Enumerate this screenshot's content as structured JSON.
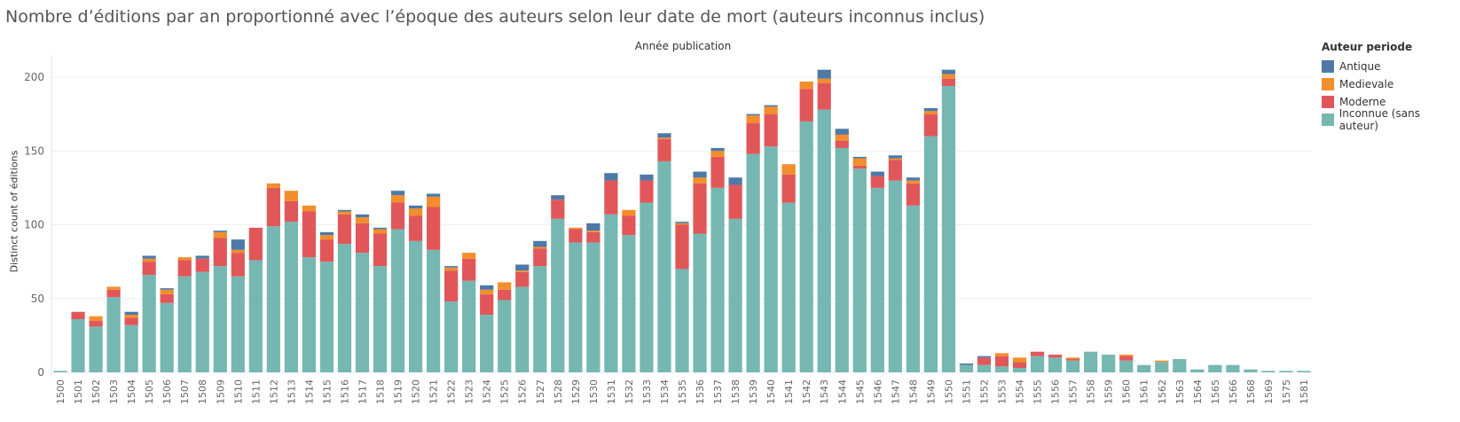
{
  "title": "Nombre d’éditions par an proportionné avec l’époque des auteurs selon leur date de mort (auteurs inconnus inclus)",
  "legend": {
    "title": "Auteur periode",
    "items": [
      {
        "label": "Antique",
        "color": "#4e79a7"
      },
      {
        "label": "Medievale",
        "color": "#f28e2b"
      },
      {
        "label": "Moderne",
        "color": "#e15759"
      },
      {
        "label": "Inconnue (sans auteur)",
        "color": "#76b7b2"
      }
    ]
  },
  "chart_data": {
    "type": "bar",
    "stacked": true,
    "xlabel": "Année publication",
    "ylabel": "Distinct count of éditions",
    "ylim": [
      0,
      215
    ],
    "yticks": [
      0,
      50,
      100,
      150,
      200
    ],
    "grid": true,
    "legend_position": "right",
    "categories": [
      "1500",
      "1501",
      "1502",
      "1503",
      "1504",
      "1505",
      "1506",
      "1507",
      "1508",
      "1509",
      "1510",
      "1511",
      "1512",
      "1513",
      "1514",
      "1515",
      "1516",
      "1517",
      "1518",
      "1519",
      "1520",
      "1521",
      "1522",
      "1523",
      "1524",
      "1525",
      "1526",
      "1527",
      "1528",
      "1529",
      "1530",
      "1531",
      "1532",
      "1533",
      "1534",
      "1535",
      "1536",
      "1537",
      "1538",
      "1539",
      "1540",
      "1541",
      "1542",
      "1543",
      "1544",
      "1545",
      "1546",
      "1547",
      "1548",
      "1549",
      "1550",
      "1551",
      "1552",
      "1553",
      "1554",
      "1555",
      "1556",
      "1557",
      "1558",
      "1559",
      "1560",
      "1561",
      "1562",
      "1563",
      "1564",
      "1565",
      "1566",
      "1568",
      "1569",
      "1575",
      "1581"
    ],
    "series": [
      {
        "name": "Inconnue (sans auteur)",
        "color": "#76b7b2",
        "values": [
          1,
          36,
          31,
          51,
          32,
          66,
          47,
          65,
          68,
          72,
          65,
          76,
          99,
          102,
          78,
          75,
          87,
          81,
          72,
          97,
          89,
          83,
          48,
          62,
          39,
          49,
          58,
          72,
          104,
          88,
          88,
          107,
          93,
          115,
          143,
          70,
          94,
          125,
          104,
          148,
          153,
          115,
          170,
          178,
          152,
          138,
          125,
          130,
          113,
          160,
          194,
          5,
          5,
          4,
          3,
          11,
          10,
          8,
          14,
          12,
          8,
          5,
          7,
          9,
          2,
          5,
          5,
          2,
          1,
          1,
          1
        ]
      },
      {
        "name": "Moderne",
        "color": "#e15759",
        "values": [
          0,
          5,
          4,
          5,
          5,
          9,
          6,
          11,
          9,
          19,
          16,
          22,
          26,
          14,
          31,
          15,
          20,
          20,
          22,
          18,
          17,
          29,
          21,
          15,
          14,
          7,
          10,
          12,
          13,
          9,
          7,
          23,
          13,
          15,
          15,
          30,
          34,
          21,
          23,
          21,
          22,
          19,
          22,
          18,
          5,
          2,
          8,
          14,
          15,
          15,
          5,
          0,
          5,
          7,
          4,
          3,
          2,
          1,
          0,
          0,
          3,
          0,
          0,
          0,
          0,
          0,
          0,
          0,
          0,
          0,
          0
        ]
      },
      {
        "name": "Medievale",
        "color": "#f28e2b",
        "values": [
          0,
          0,
          3,
          2,
          2,
          2,
          3,
          2,
          0,
          4,
          2,
          0,
          3,
          7,
          4,
          3,
          2,
          4,
          3,
          5,
          5,
          7,
          2,
          4,
          3,
          5,
          1,
          1,
          0,
          1,
          1,
          0,
          4,
          0,
          1,
          1,
          4,
          4,
          0,
          5,
          5,
          7,
          5,
          3,
          4,
          5,
          0,
          1,
          2,
          2,
          3,
          0,
          0,
          2,
          3,
          0,
          0,
          1,
          0,
          0,
          1,
          0,
          1,
          0,
          0,
          0,
          0,
          0,
          0,
          0,
          0
        ]
      },
      {
        "name": "Antique",
        "color": "#4e79a7",
        "values": [
          0,
          0,
          0,
          0,
          2,
          2,
          1,
          0,
          2,
          1,
          7,
          0,
          0,
          0,
          0,
          2,
          1,
          2,
          1,
          3,
          2,
          2,
          1,
          0,
          3,
          0,
          4,
          4,
          3,
          0,
          5,
          5,
          0,
          4,
          3,
          1,
          4,
          2,
          5,
          1,
          1,
          0,
          0,
          6,
          4,
          1,
          3,
          2,
          2,
          2,
          3,
          1,
          1,
          0,
          0,
          0,
          0,
          0,
          0,
          0,
          0,
          0,
          0,
          0,
          0,
          0,
          0,
          0,
          0,
          0,
          0
        ]
      }
    ]
  }
}
